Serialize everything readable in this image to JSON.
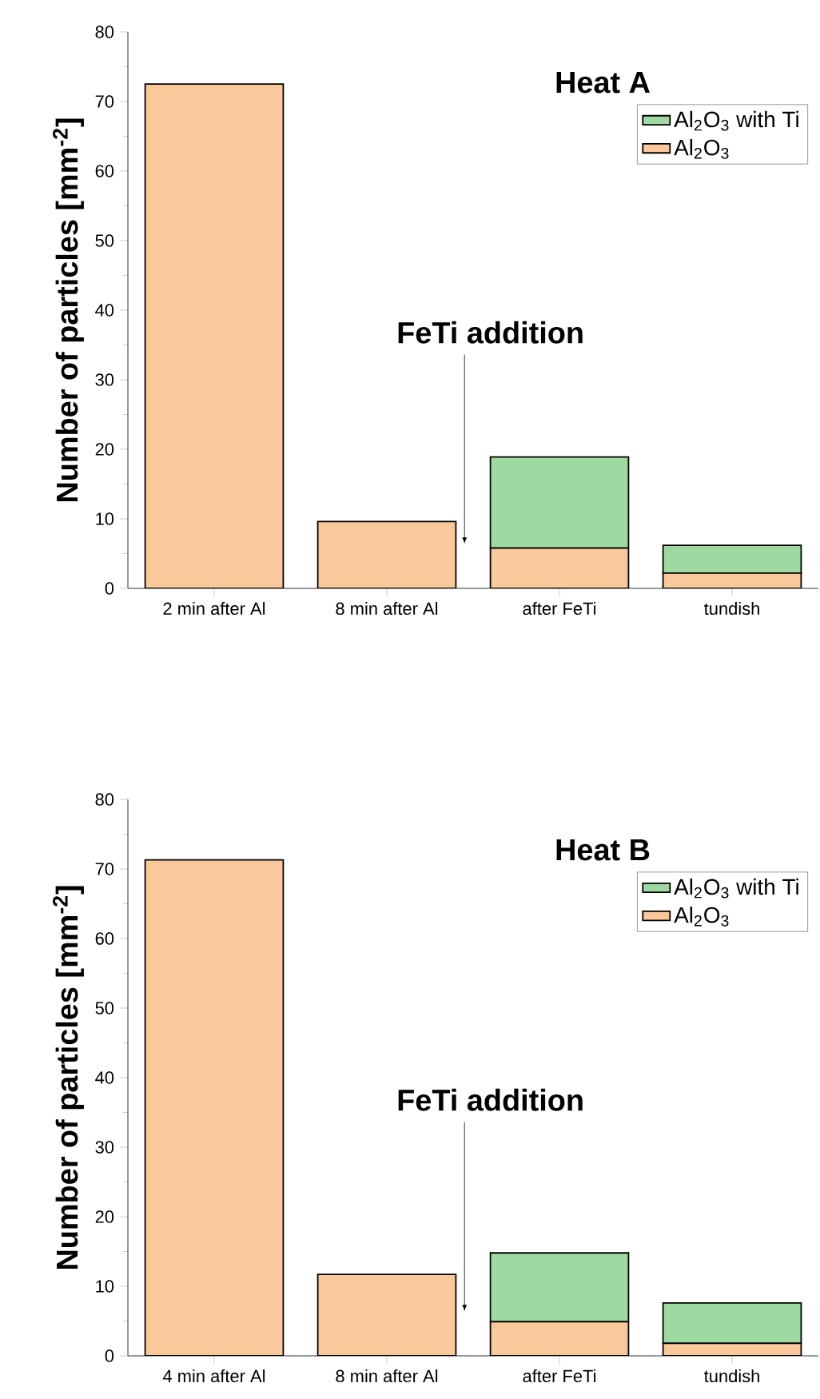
{
  "chart_data": [
    {
      "type": "bar",
      "title": "Heat A",
      "ylabel": "Number of particles [mm$^{-2}$]",
      "categories": [
        "2 min after Al",
        "8 min after Al",
        "after FeTi",
        "tundish"
      ],
      "stacked": true,
      "series": [
        {
          "name": "Al$_{2}$O$_{3}$",
          "color": "#f9c89b",
          "values": [
            72.5,
            9.6,
            5.8,
            2.2
          ]
        },
        {
          "name": "Al$_{2}$O$_{3}$ with Ti",
          "color": "#9dd9a0",
          "values": [
            0,
            0,
            13.1,
            4.0
          ]
        }
      ],
      "ylim": [
        0,
        80
      ],
      "yticks": [
        0,
        10,
        20,
        30,
        40,
        50,
        60,
        70,
        80
      ],
      "legend": "top right",
      "annotations": [
        "FeTi  addition"
      ]
    },
    {
      "type": "bar",
      "title": "Heat B",
      "ylabel": "Number of particles [mm$^{-2}$]",
      "categories": [
        "4 min after Al",
        "8 min after Al",
        "after FeTi",
        "tundish"
      ],
      "stacked": true,
      "series": [
        {
          "name": "Al$_{2}$O$_{3}$",
          "color": "#f9c89b",
          "values": [
            71.3,
            11.7,
            4.9,
            1.8
          ]
        },
        {
          "name": "Al$_{2}$O$_{3}$ with Ti",
          "color": "#9dd9a0",
          "values": [
            0,
            0,
            9.9,
            5.8
          ]
        }
      ],
      "ylim": [
        0,
        80
      ],
      "yticks": [
        0,
        10,
        20,
        30,
        40,
        50,
        60,
        70,
        80
      ],
      "legend": "top right",
      "annotations": [
        "FeTi  addition"
      ]
    }
  ]
}
